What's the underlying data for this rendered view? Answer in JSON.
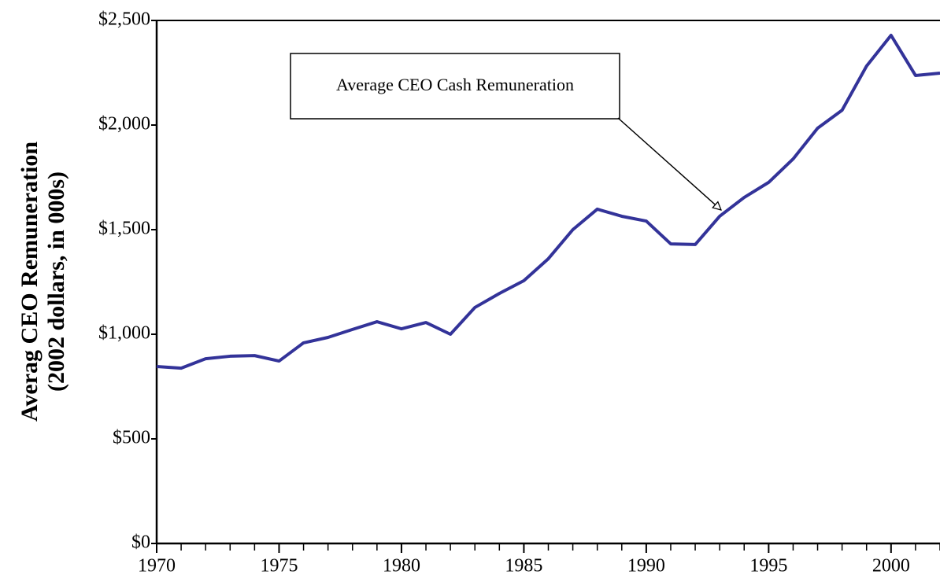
{
  "chart_data": {
    "type": "line",
    "y_label": [
      "Averag CEO Remuneration",
      "(2002 dollars, in 000s)"
    ],
    "annotation": "Average CEO Cash Remuneration",
    "x": [
      1970,
      1971,
      1972,
      1973,
      1974,
      1975,
      1976,
      1977,
      1978,
      1979,
      1980,
      1981,
      1982,
      1983,
      1984,
      1985,
      1986,
      1987,
      1988,
      1989,
      1990,
      1991,
      1992,
      1993,
      1994,
      1995,
      1996,
      1997,
      1998,
      1999,
      2000,
      2001,
      2002
    ],
    "series": [
      {
        "name": "Average CEO Cash Remuneration",
        "color": "#333399",
        "values": [
          846,
          838,
          883,
          895,
          898,
          872,
          959,
          985,
          1023,
          1060,
          1026,
          1056,
          1000,
          1128,
          1195,
          1256,
          1361,
          1500,
          1598,
          1564,
          1541,
          1432,
          1429,
          1564,
          1654,
          1726,
          1838,
          1985,
          2071,
          2282,
          2429,
          2237,
          2248
        ]
      }
    ],
    "xlim": [
      1970,
      2002
    ],
    "xticks": [
      1970,
      1975,
      1980,
      1985,
      1990,
      1995,
      2000
    ],
    "ylim": [
      0,
      2500
    ],
    "yticks": [
      {
        "value": 0,
        "label": "$0"
      },
      {
        "value": 500,
        "label": "$500"
      },
      {
        "value": 1000,
        "label": "$1,000"
      },
      {
        "value": 1500,
        "label": "$1,500"
      },
      {
        "value": 2000,
        "label": "$2,000"
      },
      {
        "value": 2500,
        "label": "$2,500"
      }
    ],
    "grid": false
  }
}
